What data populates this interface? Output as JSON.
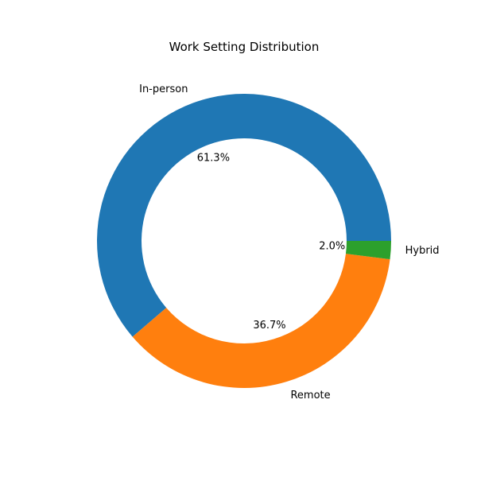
{
  "chart_data": {
    "type": "pie",
    "variant": "donut",
    "title": "Work Setting Distribution",
    "start_angle_deg": 0,
    "direction": "counterclockwise",
    "slices": [
      {
        "label": "In-person",
        "value": 61.3,
        "pct_label": "61.3%",
        "color": "#1f77b4"
      },
      {
        "label": "Remote",
        "value": 36.7,
        "pct_label": "36.7%",
        "color": "#ff7f0e"
      },
      {
        "label": "Hybrid",
        "value": 2.0,
        "pct_label": "2.0%",
        "color": "#2ca02c"
      }
    ]
  }
}
